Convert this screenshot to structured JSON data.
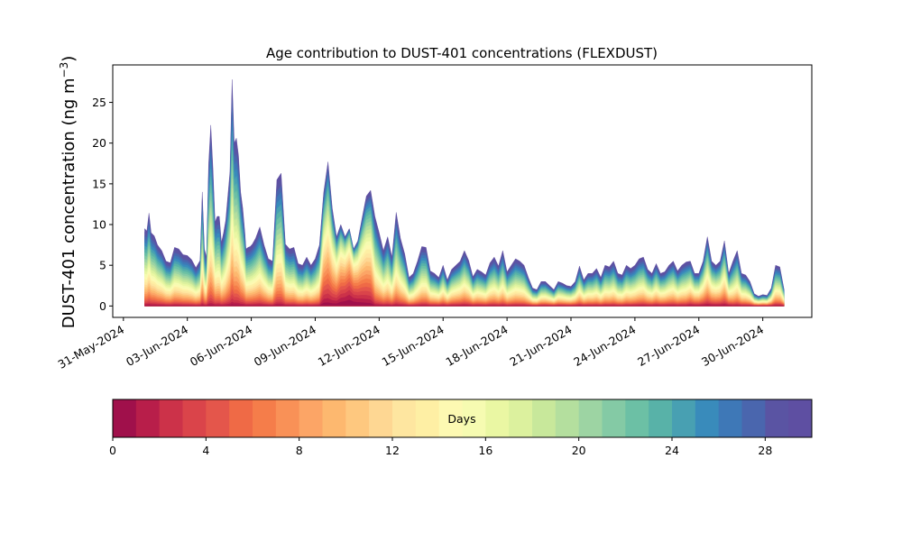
{
  "chart_data": {
    "type": "area",
    "stacked": true,
    "title": "Age contribution to DUST-401 concentrations (FLEXDUST)",
    "ylabel_main": "DUST-401 concentration (ng m",
    "ylabel_sup": "−3",
    "ylabel_end": ")",
    "xlabel": "",
    "x_tick_labels": [
      "31-May-2024",
      "03-Jun-2024",
      "06-Jun-2024",
      "09-Jun-2024",
      "12-Jun-2024",
      "15-Jun-2024",
      "18-Jun-2024",
      "21-Jun-2024",
      "24-Jun-2024",
      "27-Jun-2024",
      "30-Jun-2024"
    ],
    "x_tick_days": [
      0,
      3,
      6,
      9,
      12,
      15,
      18,
      21,
      24,
      27,
      30
    ],
    "xlim_days": [
      -0.5,
      32.3
    ],
    "x_axis_origin": "31-May-2024",
    "y_ticks": [
      0,
      5,
      10,
      15,
      20,
      25
    ],
    "ylim": [
      -1.4,
      29.6
    ],
    "total_series": {
      "name": "total",
      "x_days": [
        1.0,
        1.1,
        1.2,
        1.3,
        1.45,
        1.6,
        1.8,
        2.0,
        2.2,
        2.4,
        2.6,
        2.8,
        3.0,
        3.2,
        3.4,
        3.6,
        3.7,
        3.8,
        3.9,
        4.0,
        4.1,
        4.2,
        4.3,
        4.4,
        4.5,
        4.6,
        4.7,
        4.8,
        4.9,
        5.0,
        5.1,
        5.2,
        5.3,
        5.4,
        5.5,
        5.6,
        5.7,
        5.75,
        5.85,
        5.95,
        6.05,
        6.2,
        6.4,
        6.6,
        6.8,
        7.0,
        7.2,
        7.4,
        7.6,
        7.8,
        8.0,
        8.2,
        8.4,
        8.6,
        8.8,
        9.0,
        9.2,
        9.4,
        9.6,
        9.8,
        10.0,
        10.2,
        10.4,
        10.6,
        10.8,
        11.0,
        11.2,
        11.4,
        11.6,
        11.8,
        12.0,
        12.2,
        12.4,
        12.6,
        12.8,
        13.0,
        13.2,
        13.4,
        13.6,
        13.8,
        14.0,
        14.2,
        14.4,
        14.6,
        14.8,
        15.0,
        15.2,
        15.4,
        15.6,
        15.8,
        16.0,
        16.2,
        16.4,
        16.6,
        16.8,
        17.0,
        17.2,
        17.4,
        17.6,
        17.8,
        18.0,
        18.2,
        18.4,
        18.6,
        18.8,
        19.0,
        19.2,
        19.4,
        19.6,
        19.8,
        20.0,
        20.2,
        20.4,
        20.6,
        20.8,
        21.0,
        21.2,
        21.4,
        21.6,
        21.8,
        22.0,
        22.2,
        22.4,
        22.6,
        22.8,
        23.0,
        23.2,
        23.4,
        23.6,
        23.8,
        24.0,
        24.2,
        24.4,
        24.6,
        24.8,
        25.0,
        25.2,
        25.4,
        25.6,
        25.8,
        26.0,
        26.2,
        26.4,
        26.6,
        26.8,
        27.0,
        27.2,
        27.4,
        27.6,
        27.8,
        28.0,
        28.2,
        28.4,
        28.6,
        28.8,
        29.0,
        29.2,
        29.4,
        29.6,
        29.8,
        30.0,
        30.2,
        30.4,
        30.6,
        30.8,
        31.0
      ],
      "values": [
        9.5,
        9.2,
        11.4,
        9.0,
        8.6,
        7.5,
        6.8,
        5.5,
        5.3,
        7.2,
        7.0,
        6.3,
        6.2,
        5.7,
        4.7,
        5.6,
        14.0,
        7.0,
        6.0,
        17.5,
        22.2,
        17.0,
        10.3,
        11.0,
        11.0,
        7.8,
        9.0,
        10.5,
        13.5,
        16.5,
        27.8,
        20.0,
        20.6,
        18.5,
        14.0,
        12.0,
        9.0,
        7.0,
        7.2,
        7.3,
        7.6,
        8.3,
        9.7,
        7.5,
        5.8,
        5.5,
        15.5,
        16.3,
        7.6,
        7.0,
        7.2,
        5.2,
        5.0,
        6.0,
        5.0,
        5.8,
        7.5,
        14.0,
        17.7,
        12.0,
        8.5,
        10.0,
        8.5,
        9.5,
        7.0,
        8.0,
        10.8,
        13.5,
        14.2,
        11.0,
        9.0,
        6.8,
        8.5,
        6.0,
        11.5,
        8.3,
        6.4,
        3.5,
        4.0,
        5.5,
        7.3,
        7.2,
        4.3,
        4.0,
        3.5,
        5.0,
        3.2,
        4.5,
        5.0,
        5.5,
        6.8,
        5.6,
        3.6,
        4.5,
        4.2,
        3.8,
        5.3,
        6.0,
        4.9,
        6.8,
        4.2,
        5.0,
        5.8,
        5.5,
        5.0,
        3.5,
        2.2,
        2.0,
        3.0,
        3.0,
        2.5,
        2.0,
        3.0,
        2.8,
        2.5,
        2.4,
        3.0,
        4.9,
        3.2,
        4.0,
        4.0,
        4.6,
        3.5,
        5.0,
        4.8,
        5.5,
        4.0,
        3.8,
        5.0,
        4.6,
        5.0,
        5.8,
        6.0,
        4.5,
        4.0,
        5.2,
        4.0,
        4.2,
        5.0,
        5.5,
        4.3,
        5.0,
        5.4,
        5.5,
        4.0,
        4.0,
        5.5,
        8.5,
        5.5,
        5.0,
        5.5,
        8.0,
        4.0,
        5.5,
        6.8,
        4.0,
        3.8,
        3.0,
        1.5,
        1.2,
        1.4,
        1.3,
        2.2,
        5.0,
        4.8,
        2.0
      ]
    },
    "colorbar": {
      "label": "Days",
      "min": 0,
      "max": 30,
      "tick_values": [
        0,
        4,
        8,
        12,
        16,
        20,
        24,
        28
      ],
      "tick_labels": [
        "0",
        "4",
        "8",
        "12",
        "16",
        "20",
        "24",
        "28"
      ],
      "colors": [
        "#a0104b",
        "#b81e4a",
        "#cc3249",
        "#da444a",
        "#e4564b",
        "#ef6a46",
        "#f57d4a",
        "#f99157",
        "#fca566",
        "#fdb86f",
        "#fec87f",
        "#fed793",
        "#fee6a0",
        "#feefa4",
        "#fdf9b2",
        "#f6fbb1",
        "#eaf7a3",
        "#dcf19e",
        "#c8e89b",
        "#b4df9e",
        "#9dd4a3",
        "#84caa5",
        "#6cc0a5",
        "#58b2a8",
        "#48a0b2",
        "#398bbb",
        "#3e78b7",
        "#4a66ae",
        "#5a54a3",
        "#5e4fa2"
      ]
    }
  }
}
